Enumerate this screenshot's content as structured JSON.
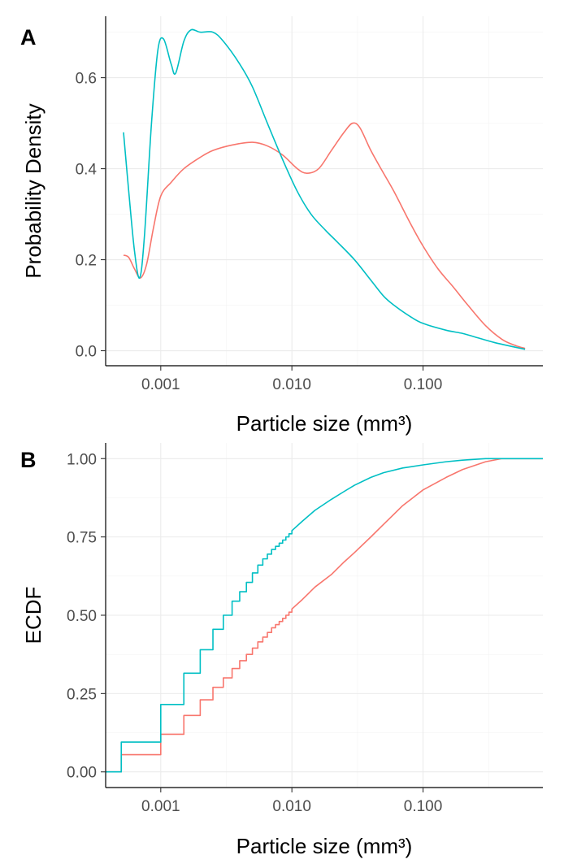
{
  "chart_data": [
    {
      "type": "line",
      "panel_label": "A",
      "xlabel": "Particle size (mm³)",
      "ylabel": "Probability Density",
      "x_scale": "log10",
      "xlim": [
        0.00038,
        0.82
      ],
      "ylim": [
        -0.033,
        0.735
      ],
      "x_ticks": [
        0.001,
        0.01,
        0.1
      ],
      "x_tick_labels": [
        "0.001",
        "0.010",
        "0.100"
      ],
      "y_ticks": [
        0.0,
        0.2,
        0.4,
        0.6
      ],
      "y_tick_labels": [
        "0.0",
        "0.2",
        "0.4",
        "0.6"
      ],
      "grid": true,
      "series": [
        {
          "name": "red",
          "color": "#F8766D",
          "x": [
            0.00052,
            0.00057,
            0.00063,
            0.0007,
            0.00078,
            0.00088,
            0.001,
            0.0012,
            0.0015,
            0.002,
            0.0025,
            0.0035,
            0.005,
            0.0065,
            0.0085,
            0.011,
            0.013,
            0.016,
            0.02,
            0.025,
            0.029,
            0.033,
            0.04,
            0.05,
            0.06,
            0.08,
            0.1,
            0.13,
            0.17,
            0.22,
            0.3,
            0.4,
            0.5,
            0.6
          ],
          "y": [
            0.21,
            0.205,
            0.18,
            0.16,
            0.19,
            0.27,
            0.34,
            0.37,
            0.4,
            0.425,
            0.44,
            0.452,
            0.458,
            0.45,
            0.43,
            0.4,
            0.39,
            0.4,
            0.44,
            0.48,
            0.5,
            0.49,
            0.44,
            0.39,
            0.35,
            0.28,
            0.23,
            0.18,
            0.14,
            0.1,
            0.055,
            0.025,
            0.012,
            0.005
          ]
        },
        {
          "name": "teal",
          "color": "#00BFC4",
          "x": [
            0.00052,
            0.00057,
            0.00063,
            0.00069,
            0.00075,
            0.00085,
            0.00095,
            0.00105,
            0.0012,
            0.0013,
            0.0015,
            0.0017,
            0.002,
            0.0025,
            0.003,
            0.004,
            0.005,
            0.0065,
            0.0085,
            0.011,
            0.014,
            0.018,
            0.022,
            0.03,
            0.04,
            0.05,
            0.06,
            0.08,
            0.1,
            0.15,
            0.2,
            0.25,
            0.35,
            0.5,
            0.6
          ],
          "y": [
            0.48,
            0.35,
            0.22,
            0.16,
            0.25,
            0.5,
            0.66,
            0.685,
            0.63,
            0.61,
            0.68,
            0.705,
            0.7,
            0.7,
            0.68,
            0.63,
            0.58,
            0.5,
            0.42,
            0.35,
            0.3,
            0.265,
            0.24,
            0.2,
            0.155,
            0.12,
            0.1,
            0.075,
            0.06,
            0.045,
            0.038,
            0.03,
            0.018,
            0.008,
            0.003
          ]
        }
      ]
    },
    {
      "type": "line",
      "panel_label": "B",
      "xlabel": "Particle size (mm³)",
      "ylabel": "ECDF",
      "x_scale": "log10",
      "xlim": [
        0.00038,
        0.82
      ],
      "ylim": [
        -0.05,
        1.05
      ],
      "x_ticks": [
        0.001,
        0.01,
        0.1
      ],
      "x_tick_labels": [
        "0.001",
        "0.010",
        "0.100"
      ],
      "y_ticks": [
        0.0,
        0.25,
        0.5,
        0.75,
        1.0
      ],
      "y_tick_labels": [
        "0.00",
        "0.25",
        "0.50",
        "0.75",
        "1.00"
      ],
      "grid": true,
      "series": [
        {
          "name": "red",
          "color": "#F8766D",
          "step_x": [
            0.0005,
            0.001,
            0.0015,
            0.002,
            0.0025,
            0.003,
            0.0035,
            0.004,
            0.0045,
            0.005,
            0.0055,
            0.006,
            0.0065,
            0.007,
            0.0075,
            0.008,
            0.0085,
            0.009,
            0.0095,
            0.01
          ],
          "step_y": [
            0.055,
            0.12,
            0.18,
            0.23,
            0.27,
            0.3,
            0.33,
            0.355,
            0.375,
            0.395,
            0.415,
            0.43,
            0.445,
            0.46,
            0.47,
            0.48,
            0.49,
            0.5,
            0.51,
            0.52
          ],
          "x": [
            0.012,
            0.015,
            0.02,
            0.025,
            0.03,
            0.04,
            0.05,
            0.07,
            0.1,
            0.15,
            0.2,
            0.3,
            0.4,
            0.6,
            0.82
          ],
          "y": [
            0.55,
            0.59,
            0.63,
            0.67,
            0.7,
            0.75,
            0.79,
            0.85,
            0.9,
            0.94,
            0.965,
            0.99,
            1.0,
            1.0,
            1.0
          ]
        },
        {
          "name": "teal",
          "color": "#00BFC4",
          "step_x": [
            0.0005,
            0.001,
            0.0015,
            0.002,
            0.0025,
            0.003,
            0.0035,
            0.004,
            0.0045,
            0.005,
            0.0055,
            0.006,
            0.0065,
            0.007,
            0.0075,
            0.008,
            0.0085,
            0.009,
            0.0095,
            0.01
          ],
          "step_y": [
            0.095,
            0.215,
            0.315,
            0.39,
            0.455,
            0.5,
            0.545,
            0.575,
            0.605,
            0.635,
            0.66,
            0.68,
            0.695,
            0.71,
            0.72,
            0.73,
            0.74,
            0.75,
            0.76,
            0.77
          ],
          "x": [
            0.012,
            0.015,
            0.02,
            0.025,
            0.03,
            0.04,
            0.05,
            0.07,
            0.1,
            0.15,
            0.2,
            0.3,
            0.4,
            0.6,
            0.82
          ],
          "y": [
            0.8,
            0.835,
            0.87,
            0.895,
            0.915,
            0.94,
            0.955,
            0.97,
            0.98,
            0.99,
            0.995,
            1.0,
            1.0,
            1.0,
            1.0
          ]
        }
      ]
    }
  ]
}
